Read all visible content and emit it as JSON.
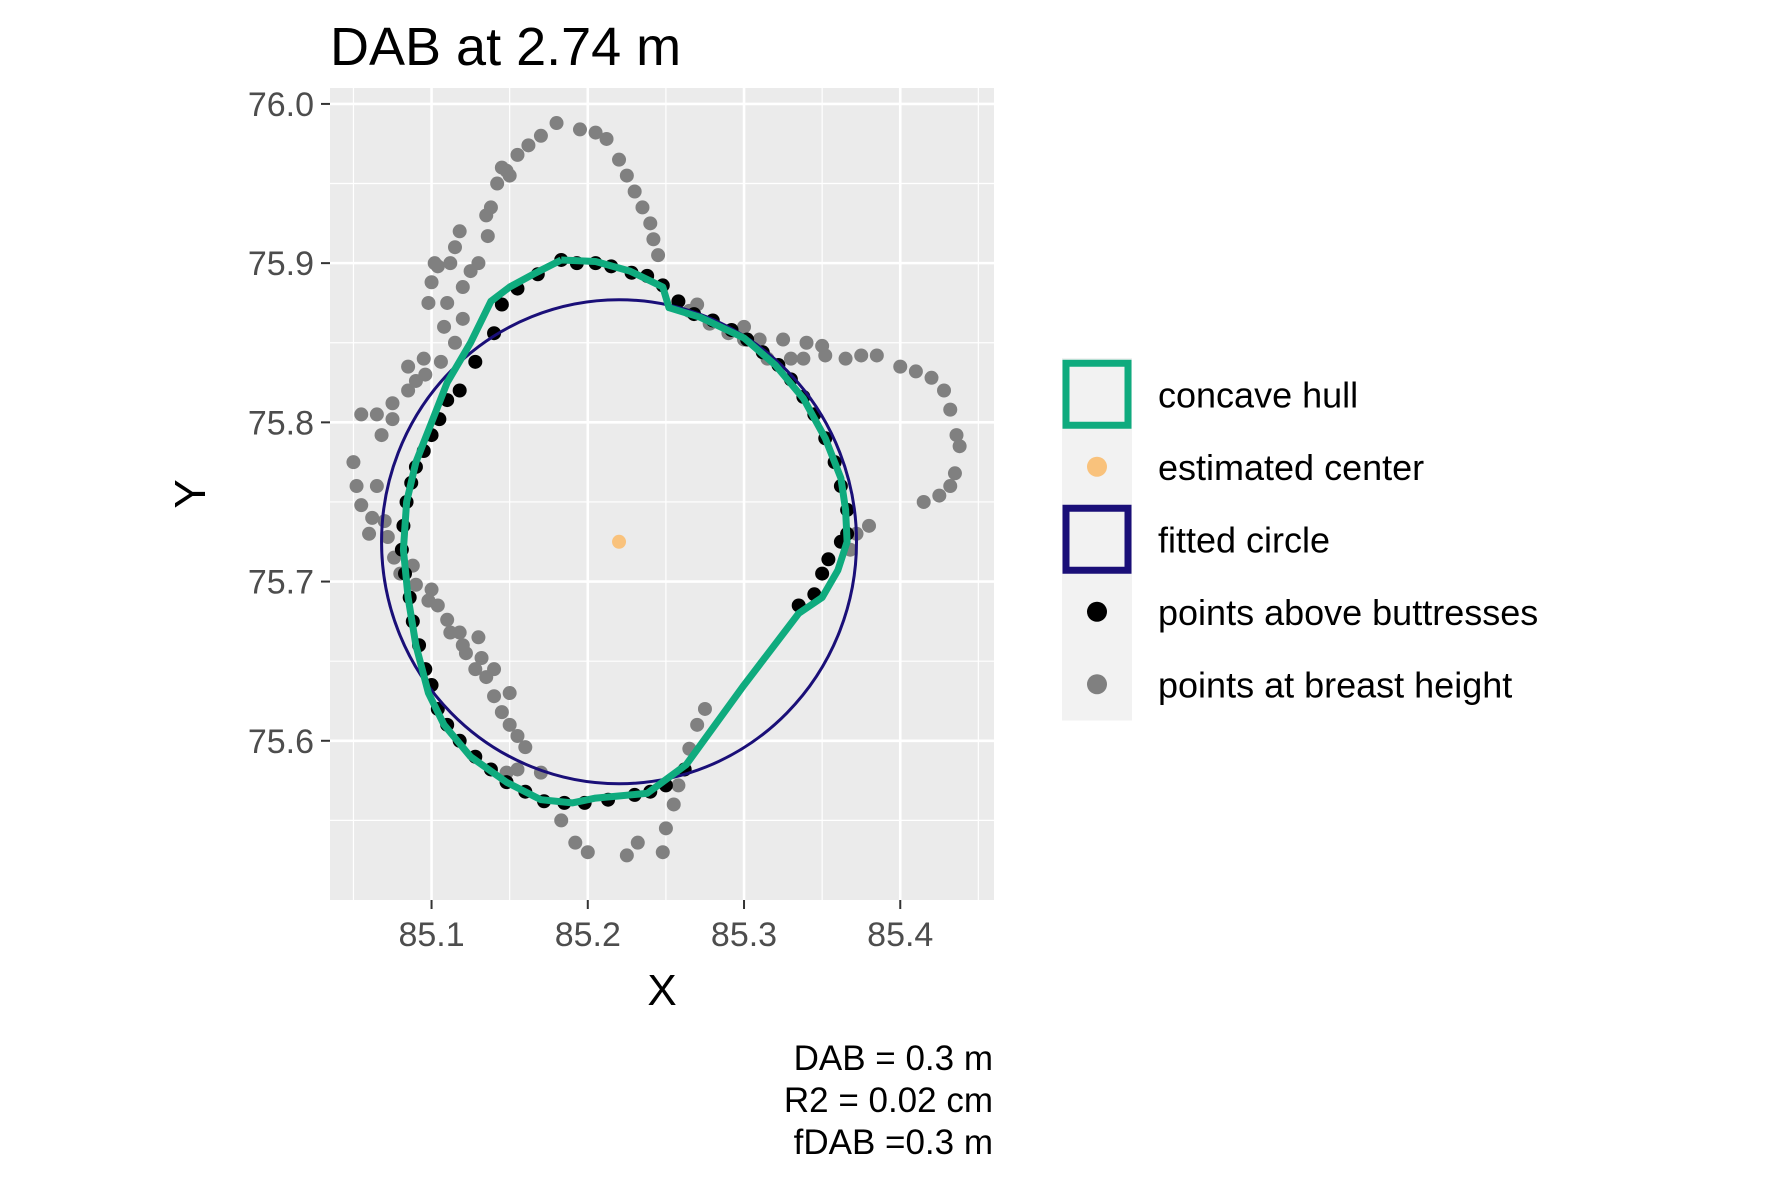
{
  "chart_data": {
    "type": "scatter",
    "title": "DAB at 2.74 m",
    "xlabel": "X",
    "ylabel": "Y",
    "xlim": [
      85.035,
      85.46
    ],
    "ylim": [
      75.5,
      76.01
    ],
    "x_ticks": [
      85.1,
      85.2,
      85.3,
      85.4
    ],
    "x_tick_labels": [
      "85.1",
      "85.2",
      "85.3",
      "85.4"
    ],
    "y_ticks": [
      75.6,
      75.7,
      75.8,
      75.9,
      76.0
    ],
    "y_tick_labels": [
      "75.6",
      "75.7",
      "75.8",
      "75.9",
      "76.0"
    ],
    "grid": true,
    "legend_position": "right",
    "legend": [
      {
        "label": "concave hull",
        "kind": "hull"
      },
      {
        "label": "estimated center",
        "kind": "center"
      },
      {
        "label": "fitted circle",
        "kind": "circle"
      },
      {
        "label": "points above buttresses",
        "kind": "above"
      },
      {
        "label": "points at breast height",
        "kind": "breast"
      }
    ],
    "colors": {
      "panel": "#ebebeb",
      "grid": "#ffffff",
      "hull": "#0fab7e",
      "circle": "#1a0f78",
      "center": "#f9c27c",
      "above": "#000000",
      "breast": "#808080",
      "legend_key_bg": "#f2f2f2"
    },
    "fitted_circle": {
      "cx": 85.22,
      "cy": 75.725,
      "r": 0.152
    },
    "estimated_center": {
      "x": 85.22,
      "y": 75.725
    },
    "concave_hull": [
      [
        85.183,
        75.902
      ],
      [
        85.205,
        75.901
      ],
      [
        85.227,
        75.895
      ],
      [
        85.248,
        75.885
      ],
      [
        85.252,
        75.872
      ],
      [
        85.272,
        75.866
      ],
      [
        85.3,
        75.853
      ],
      [
        85.32,
        75.836
      ],
      [
        85.338,
        75.815
      ],
      [
        85.352,
        75.79
      ],
      [
        85.362,
        75.765
      ],
      [
        85.365,
        75.745
      ],
      [
        85.366,
        75.725
      ],
      [
        85.36,
        75.707
      ],
      [
        85.35,
        75.69
      ],
      [
        85.335,
        75.68
      ],
      [
        85.3,
        75.635
      ],
      [
        85.263,
        75.585
      ],
      [
        85.238,
        75.567
      ],
      [
        85.205,
        75.564
      ],
      [
        85.19,
        75.561
      ],
      [
        85.17,
        75.563
      ],
      [
        85.148,
        75.574
      ],
      [
        85.125,
        75.59
      ],
      [
        85.108,
        75.61
      ],
      [
        85.098,
        75.63
      ],
      [
        85.09,
        75.66
      ],
      [
        85.085,
        75.69
      ],
      [
        85.082,
        75.72
      ],
      [
        85.084,
        75.75
      ],
      [
        85.09,
        75.775
      ],
      [
        85.1,
        75.8
      ],
      [
        85.11,
        75.825
      ],
      [
        85.125,
        75.85
      ],
      [
        85.138,
        75.876
      ],
      [
        85.15,
        75.885
      ],
      [
        85.165,
        75.893
      ],
      [
        85.183,
        75.902
      ]
    ],
    "points_above_buttresses": [
      [
        85.183,
        75.902
      ],
      [
        85.193,
        75.9
      ],
      [
        85.205,
        75.9
      ],
      [
        85.215,
        75.898
      ],
      [
        85.228,
        75.894
      ],
      [
        85.238,
        75.892
      ],
      [
        85.248,
        75.886
      ],
      [
        85.258,
        75.876
      ],
      [
        85.268,
        75.868
      ],
      [
        85.28,
        75.864
      ],
      [
        85.292,
        75.858
      ],
      [
        85.302,
        75.852
      ],
      [
        85.312,
        75.844
      ],
      [
        85.322,
        75.836
      ],
      [
        85.33,
        75.827
      ],
      [
        85.338,
        75.816
      ],
      [
        85.345,
        75.805
      ],
      [
        85.352,
        75.79
      ],
      [
        85.358,
        75.775
      ],
      [
        85.362,
        75.76
      ],
      [
        85.366,
        75.745
      ],
      [
        85.366,
        75.73
      ],
      [
        85.362,
        75.725
      ],
      [
        85.354,
        75.714
      ],
      [
        85.35,
        75.705
      ],
      [
        85.345,
        75.692
      ],
      [
        85.335,
        75.685
      ],
      [
        85.262,
        75.582
      ],
      [
        85.25,
        75.572
      ],
      [
        85.24,
        75.568
      ],
      [
        85.23,
        75.566
      ],
      [
        85.213,
        75.563
      ],
      [
        85.198,
        75.561
      ],
      [
        85.185,
        75.561
      ],
      [
        85.172,
        75.562
      ],
      [
        85.16,
        75.568
      ],
      [
        85.148,
        75.574
      ],
      [
        85.138,
        75.582
      ],
      [
        85.128,
        75.59
      ],
      [
        85.118,
        75.6
      ],
      [
        85.11,
        75.61
      ],
      [
        85.104,
        75.62
      ],
      [
        85.1,
        75.635
      ],
      [
        85.096,
        75.645
      ],
      [
        85.092,
        75.66
      ],
      [
        85.088,
        75.675
      ],
      [
        85.086,
        75.69
      ],
      [
        85.083,
        75.705
      ],
      [
        85.081,
        75.72
      ],
      [
        85.082,
        75.735
      ],
      [
        85.084,
        75.75
      ],
      [
        85.087,
        75.762
      ],
      [
        85.09,
        75.772
      ],
      [
        85.095,
        75.782
      ],
      [
        85.1,
        75.792
      ],
      [
        85.105,
        75.802
      ],
      [
        85.11,
        75.814
      ],
      [
        85.118,
        75.82
      ],
      [
        85.128,
        75.838
      ],
      [
        85.14,
        75.856
      ],
      [
        85.145,
        75.874
      ],
      [
        85.155,
        75.884
      ],
      [
        85.168,
        75.893
      ]
    ],
    "points_at_breast_height": [
      [
        85.18,
        75.988
      ],
      [
        85.195,
        75.984
      ],
      [
        85.205,
        75.982
      ],
      [
        85.212,
        75.978
      ],
      [
        85.17,
        75.98
      ],
      [
        85.162,
        75.974
      ],
      [
        85.155,
        75.968
      ],
      [
        85.148,
        75.958
      ],
      [
        85.142,
        75.95
      ],
      [
        85.138,
        75.935
      ],
      [
        85.136,
        75.917
      ],
      [
        85.13,
        75.9
      ],
      [
        85.118,
        75.92
      ],
      [
        85.115,
        75.91
      ],
      [
        85.112,
        75.9
      ],
      [
        85.104,
        75.898
      ],
      [
        85.1,
        75.888
      ],
      [
        85.098,
        75.875
      ],
      [
        85.11,
        75.875
      ],
      [
        85.12,
        75.865
      ],
      [
        85.115,
        75.85
      ],
      [
        85.106,
        75.838
      ],
      [
        85.096,
        75.83
      ],
      [
        85.09,
        75.826
      ],
      [
        85.085,
        75.82
      ],
      [
        85.075,
        75.812
      ],
      [
        85.065,
        75.805
      ],
      [
        85.055,
        75.805
      ],
      [
        85.05,
        75.775
      ],
      [
        85.052,
        75.76
      ],
      [
        85.055,
        75.748
      ],
      [
        85.062,
        75.74
      ],
      [
        85.07,
        75.738
      ],
      [
        85.072,
        75.728
      ],
      [
        85.076,
        75.715
      ],
      [
        85.08,
        75.705
      ],
      [
        85.088,
        75.71
      ],
      [
        85.1,
        75.695
      ],
      [
        85.104,
        75.685
      ],
      [
        85.11,
        75.676
      ],
      [
        85.118,
        75.668
      ],
      [
        85.12,
        75.66
      ],
      [
        85.13,
        75.665
      ],
      [
        85.128,
        75.645
      ],
      [
        85.135,
        75.64
      ],
      [
        85.14,
        75.628
      ],
      [
        85.145,
        75.618
      ],
      [
        85.15,
        75.61
      ],
      [
        85.155,
        75.603
      ],
      [
        85.16,
        75.596
      ],
      [
        85.17,
        75.58
      ],
      [
        85.155,
        75.582
      ],
      [
        85.148,
        75.58
      ],
      [
        85.183,
        75.55
      ],
      [
        85.192,
        75.536
      ],
      [
        85.2,
        75.53
      ],
      [
        85.225,
        75.528
      ],
      [
        85.232,
        75.536
      ],
      [
        85.248,
        75.53
      ],
      [
        85.25,
        75.545
      ],
      [
        85.255,
        75.56
      ],
      [
        85.258,
        75.572
      ],
      [
        85.262,
        75.582
      ],
      [
        85.265,
        75.595
      ],
      [
        85.27,
        75.61
      ],
      [
        85.275,
        75.62
      ],
      [
        85.22,
        75.965
      ],
      [
        85.225,
        75.955
      ],
      [
        85.23,
        75.945
      ],
      [
        85.235,
        75.935
      ],
      [
        85.24,
        75.925
      ],
      [
        85.242,
        75.915
      ],
      [
        85.245,
        75.905
      ],
      [
        85.27,
        75.874
      ],
      [
        85.278,
        75.862
      ],
      [
        85.29,
        75.856
      ],
      [
        85.3,
        75.852
      ],
      [
        85.31,
        75.852
      ],
      [
        85.325,
        75.852
      ],
      [
        85.34,
        75.85
      ],
      [
        85.35,
        75.848
      ],
      [
        85.338,
        75.84
      ],
      [
        85.352,
        75.842
      ],
      [
        85.365,
        75.84
      ],
      [
        85.375,
        75.842
      ],
      [
        85.385,
        75.842
      ],
      [
        85.4,
        75.835
      ],
      [
        85.41,
        75.832
      ],
      [
        85.42,
        75.828
      ],
      [
        85.428,
        75.82
      ],
      [
        85.432,
        75.808
      ],
      [
        85.436,
        75.792
      ],
      [
        85.438,
        75.785
      ],
      [
        85.435,
        75.768
      ],
      [
        85.432,
        75.76
      ],
      [
        85.425,
        75.754
      ],
      [
        85.415,
        75.75
      ],
      [
        85.38,
        75.735
      ],
      [
        85.372,
        75.73
      ],
      [
        85.368,
        75.72
      ],
      [
        85.3,
        75.86
      ],
      [
        85.315,
        75.84
      ],
      [
        85.33,
        75.84
      ],
      [
        85.265,
        75.87
      ],
      [
        85.12,
        75.885
      ],
      [
        85.108,
        75.86
      ],
      [
        85.095,
        75.84
      ],
      [
        85.085,
        75.835
      ],
      [
        85.102,
        75.9
      ],
      [
        85.145,
        75.96
      ],
      [
        85.15,
        75.955
      ],
      [
        85.135,
        75.93
      ],
      [
        85.125,
        75.895
      ],
      [
        85.075,
        75.802
      ],
      [
        85.068,
        75.792
      ],
      [
        85.06,
        75.73
      ],
      [
        85.065,
        75.76
      ],
      [
        85.09,
        75.698
      ],
      [
        85.098,
        75.688
      ],
      [
        85.112,
        75.668
      ],
      [
        85.122,
        75.655
      ],
      [
        85.132,
        75.652
      ],
      [
        85.14,
        75.645
      ],
      [
        85.15,
        75.63
      ]
    ]
  },
  "caption": {
    "line1": "DAB = 0.3 m",
    "line2": "R2 = 0.02 cm",
    "line3": "fDAB =0.3 m"
  }
}
